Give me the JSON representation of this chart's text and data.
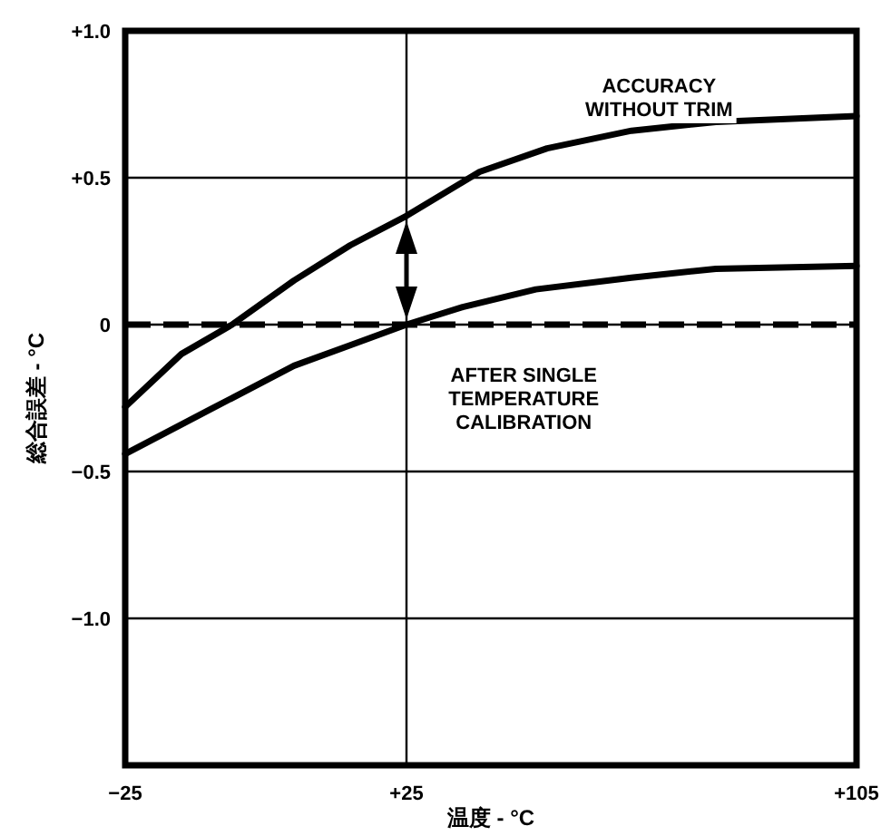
{
  "chart_data": {
    "type": "line",
    "xlabel": "温度 - °C",
    "ylabel": "総合誤差 - °C",
    "series": [
      {
        "color": "#000000",
        "x": [
          -25,
          -15,
          -6,
          5,
          15,
          25,
          38,
          50,
          65,
          80,
          105
        ],
        "values": [
          -0.28,
          -0.1,
          0,
          0.15,
          0.27,
          0.37,
          0.52,
          0.6,
          0.66,
          0.69,
          0.71
        ]
      },
      {
        "color": "#000000",
        "x": [
          -25,
          -10,
          5,
          15,
          25,
          35,
          48,
          65,
          80,
          105
        ],
        "values": [
          -0.44,
          -0.29,
          -0.14,
          -0.07,
          0,
          0.06,
          0.12,
          0.16,
          0.19,
          0.2
        ]
      }
    ],
    "xlim": [
      -25,
      105
    ],
    "ylim": [
      -1.5,
      1.0
    ],
    "xticks": [
      {
        "value": -25,
        "label": "−25"
      },
      {
        "value": 25,
        "label": "+25"
      },
      {
        "value": 105,
        "label": "+105"
      }
    ],
    "yticks": [
      {
        "value": -1.5,
        "label": null
      },
      {
        "value": -1.0,
        "label": "−1.0"
      },
      {
        "value": -0.5,
        "label": "−0.5"
      },
      0,
      {
        "value": 0.5,
        "label": "+0.5"
      },
      {
        "value": 1.0,
        "label": "+1.0"
      }
    ],
    "grid": true,
    "line_style": "solid",
    "ref_lines": [
      {
        "axis": "y",
        "value": 0,
        "color": "#000000",
        "line_style": "dashed"
      }
    ],
    "annotations": [
      "ACCURACY\nWITHOUT TRIM",
      "AFTER SINGLE\nTEMPERATURE\nCALIBRATION"
    ]
  }
}
